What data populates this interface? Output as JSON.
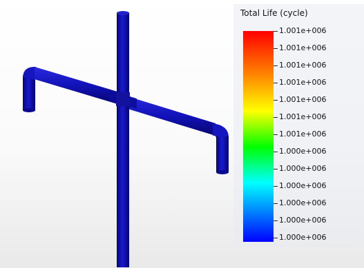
{
  "legend": {
    "title": "Total Life (cycle)",
    "labels": [
      "1.001e+006",
      "1.001e+006",
      "1.001e+006",
      "1.001e+006",
      "1.001e+006",
      "1.001e+006",
      "1.001e+006",
      "1.000e+006",
      "1.000e+006",
      "1.000e+006",
      "1.000e+006",
      "1.000e+006",
      "1.000e+006"
    ],
    "gradient_colors": [
      "#ff0000",
      "#ff7f00",
      "#ffff00",
      "#00ff00",
      "#00ffff",
      "#0000ff"
    ]
  },
  "model": {
    "color": "#1010aa",
    "highlight_color": "#3a3ae0"
  }
}
